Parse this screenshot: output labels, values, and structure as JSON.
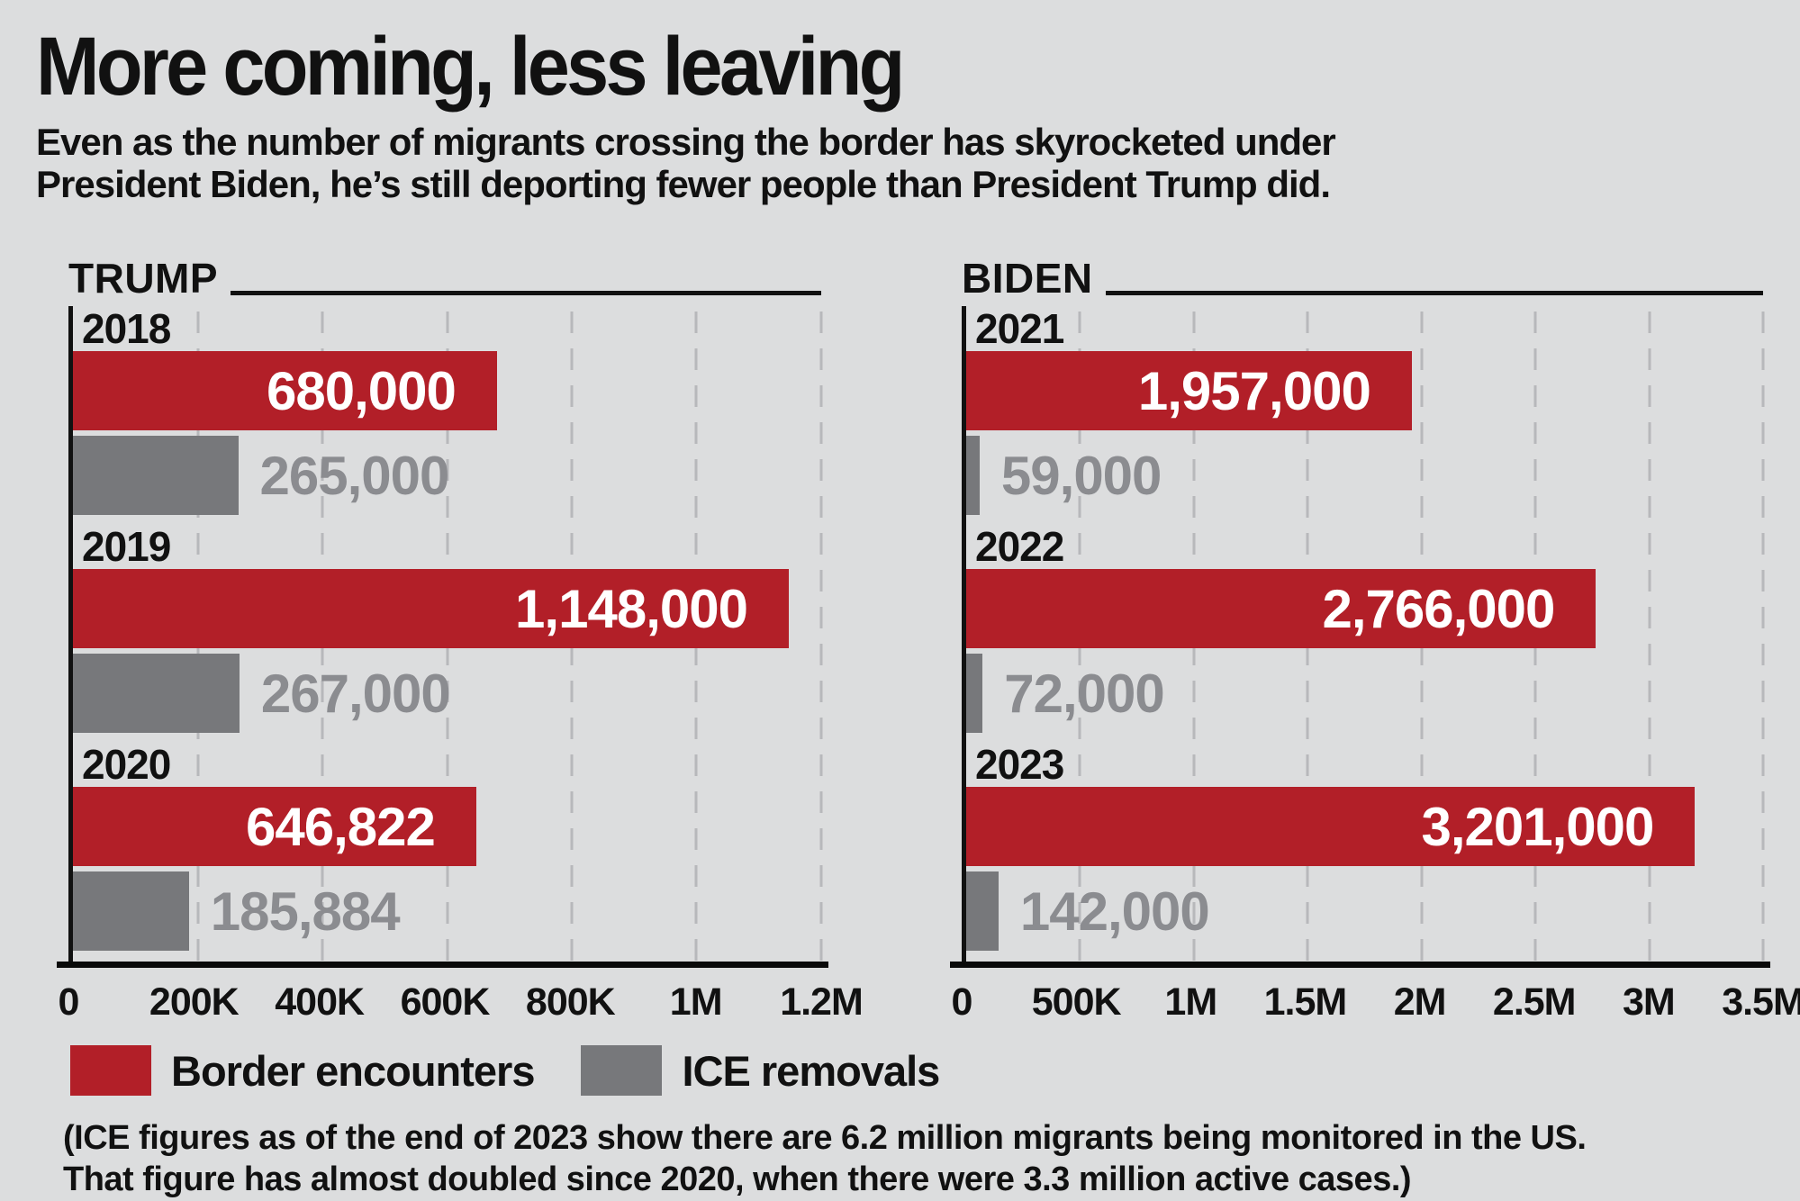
{
  "title": "More coming, less leaving",
  "subtitle": "Even as the number of migrants crossing the border has skyrocketed under President Biden, he’s still deporting fewer people than President Trump did.",
  "colors": {
    "background": "#dcddde",
    "border_encounters_red": "#b21f28",
    "ice_removals_gray": "#77787b",
    "gray_value_text": "#8b8c90",
    "gridline": "#b7b8bb",
    "axis_black": "#0a0a0a"
  },
  "legend": [
    {
      "label": "Border encounters",
      "color": "#b21f28"
    },
    {
      "label": "ICE removals",
      "color": "#77787b"
    }
  ],
  "footnote": {
    "line1": "(ICE figures as of the end of 2023 show there are 6.2 million migrants being monitored in the US.",
    "line2": "That figure has almost doubled since 2020, when there were 3.3 million active cases.)"
  },
  "chart_data": [
    {
      "type": "bar",
      "title": "TRUMP",
      "orientation": "horizontal",
      "grid": "dashed-vertical",
      "categories": [
        "2018",
        "2019",
        "2020"
      ],
      "xlim": [
        0,
        1200000
      ],
      "x_ticks": [
        "0",
        "200K",
        "400K",
        "600K",
        "800K",
        "1M",
        "1.2M"
      ],
      "series": [
        {
          "name": "Border encounters",
          "color": "#b21f28",
          "values": [
            680000,
            1148000,
            646822
          ],
          "labels": [
            "680,000",
            "1,148,000",
            "646,822"
          ]
        },
        {
          "name": "ICE removals",
          "color": "#77787b",
          "values": [
            265000,
            267000,
            185884
          ],
          "labels": [
            "265,000",
            "267,000",
            "185,884"
          ]
        }
      ]
    },
    {
      "type": "bar",
      "title": "BIDEN",
      "orientation": "horizontal",
      "grid": "dashed-vertical",
      "categories": [
        "2021",
        "2022",
        "2023"
      ],
      "xlim": [
        0,
        3500000
      ],
      "x_ticks": [
        "0",
        "500K",
        "1M",
        "1.5M",
        "2M",
        "2.5M",
        "3M",
        "3.5M"
      ],
      "series": [
        {
          "name": "Border encounters",
          "color": "#b21f28",
          "values": [
            1957000,
            2766000,
            3201000
          ],
          "labels": [
            "1,957,000",
            "2,766,000",
            "3,201,000"
          ]
        },
        {
          "name": "ICE removals",
          "color": "#77787b",
          "values": [
            59000,
            72000,
            142000
          ],
          "labels": [
            "59,000",
            "72,000",
            "142,000"
          ]
        }
      ]
    }
  ]
}
